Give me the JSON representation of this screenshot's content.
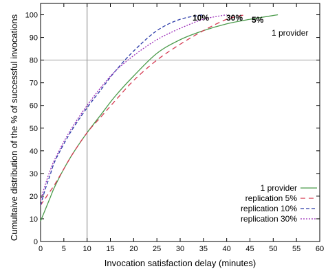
{
  "chart_data": {
    "type": "line",
    "xlabel": "Invocation satisfaction delay (minutes)",
    "ylabel": "Cumultaive distribution of the % of successful invocations",
    "xlim": [
      0,
      60
    ],
    "ylim": [
      0,
      105
    ],
    "xticks": [
      0,
      5,
      10,
      15,
      20,
      25,
      30,
      35,
      40,
      45,
      50,
      55,
      60
    ],
    "yticks": [
      0,
      10,
      20,
      30,
      40,
      50,
      60,
      70,
      80,
      90,
      100
    ],
    "reference_lines": {
      "x": 10,
      "y": 80
    },
    "legend_position": "bottom-right",
    "series": [
      {
        "name": "1 provider",
        "color": "#4a9a4a",
        "dash": "solid",
        "end_label": "1 provider",
        "x": [
          0,
          1,
          2,
          3,
          5,
          7,
          10,
          13,
          16,
          20,
          25,
          30,
          35,
          40,
          45,
          51
        ],
        "y": [
          9,
          14,
          19,
          24,
          32,
          39,
          48,
          56,
          64,
          73,
          83,
          89,
          93,
          96,
          98,
          100
        ]
      },
      {
        "name": "replication 5%",
        "color": "#d63a52",
        "dash": "7,5",
        "end_label": "5%",
        "x": [
          0,
          1,
          2,
          3,
          5,
          7,
          10,
          13,
          16,
          20,
          25,
          30,
          35,
          40,
          44
        ],
        "y": [
          16,
          19,
          22,
          25,
          32,
          39,
          48,
          55,
          62,
          71,
          80,
          87,
          93,
          98,
          100
        ]
      },
      {
        "name": "replication 10%",
        "color": "#2a3aa8",
        "dash": "5,3",
        "end_label": "10%",
        "x": [
          0,
          1,
          2,
          3,
          5,
          7,
          10,
          13,
          16,
          20,
          25,
          30,
          35
        ],
        "y": [
          16,
          23,
          29,
          35,
          43,
          50,
          59,
          67,
          75,
          84,
          93,
          98,
          100
        ]
      },
      {
        "name": "replication 30%",
        "color": "#9a2ab8",
        "dash": "2,2",
        "end_label": "30%",
        "x": [
          0,
          1,
          2,
          3,
          5,
          7,
          10,
          13,
          16,
          20,
          25,
          30,
          35,
          40
        ],
        "y": [
          18,
          25,
          31,
          36,
          44,
          51,
          60,
          68,
          75,
          82,
          89,
          94,
          98,
          100
        ]
      }
    ]
  }
}
